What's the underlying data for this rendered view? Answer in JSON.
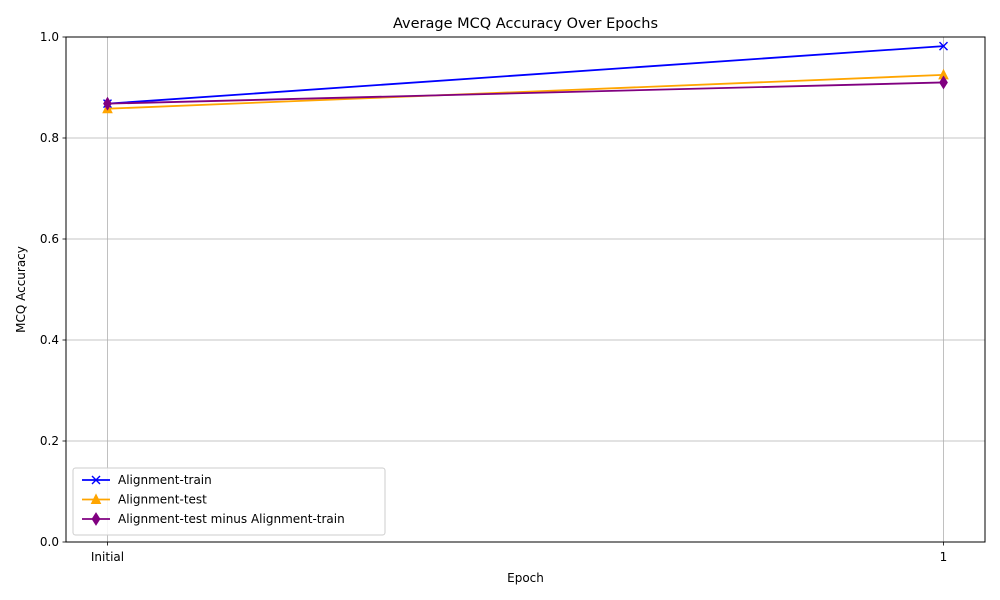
{
  "chart_data": {
    "type": "line",
    "title": "Average MCQ Accuracy Over Epochs",
    "xlabel": "Epoch",
    "ylabel": "MCQ Accuracy",
    "categories": [
      "Initial",
      "1"
    ],
    "ylim": [
      0.0,
      1.0
    ],
    "yticks": [
      "0.0",
      "0.2",
      "0.4",
      "0.6",
      "0.8",
      "1.0"
    ],
    "grid": true,
    "legend_position": "lower-left",
    "series": [
      {
        "name": "Alignment-train",
        "values": [
          0.868,
          0.982
        ],
        "color": "#0000ff",
        "marker": "x"
      },
      {
        "name": "Alignment-test",
        "values": [
          0.858,
          0.925
        ],
        "color": "#ffa500",
        "marker": "triangle"
      },
      {
        "name": "Alignment-test minus Alignment-train",
        "values": [
          0.868,
          0.91
        ],
        "color": "#800080",
        "marker": "diamond"
      }
    ]
  }
}
